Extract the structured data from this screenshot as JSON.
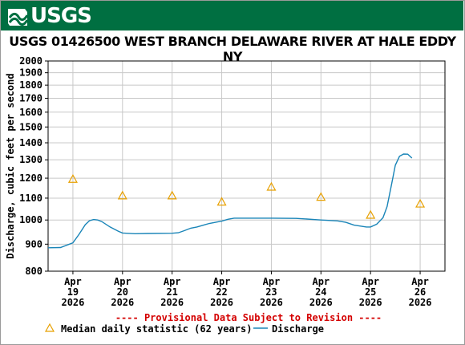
{
  "banner": {
    "logo_text": "USGS",
    "color": "#006f41"
  },
  "chart_data": {
    "type": "line",
    "title": "USGS 01426500 WEST BRANCH DELAWARE RIVER AT HALE EDDY NY",
    "ylabel": "Discharge, cubic feet per second",
    "xlabel": "",
    "ylim": [
      800,
      2000
    ],
    "y_scale": "log",
    "y_ticks": [
      800,
      900,
      1000,
      1100,
      1200,
      1300,
      1400,
      1500,
      1600,
      1700,
      1800,
      1900,
      2000
    ],
    "x_ticks": [
      {
        "date": "2026-04-19",
        "month": "Apr",
        "day": "19",
        "year": "2026"
      },
      {
        "date": "2026-04-20",
        "month": "Apr",
        "day": "20",
        "year": "2026"
      },
      {
        "date": "2026-04-21",
        "month": "Apr",
        "day": "21",
        "year": "2026"
      },
      {
        "date": "2026-04-22",
        "month": "Apr",
        "day": "22",
        "year": "2026"
      },
      {
        "date": "2026-04-23",
        "month": "Apr",
        "day": "23",
        "year": "2026"
      },
      {
        "date": "2026-04-24",
        "month": "Apr",
        "day": "24",
        "year": "2026"
      },
      {
        "date": "2026-04-25",
        "month": "Apr",
        "day": "25",
        "year": "2026"
      },
      {
        "date": "2026-04-26",
        "month": "Apr",
        "day": "26",
        "year": "2026"
      }
    ],
    "xlim": [
      "2026-04-18 12:00",
      "2026-04-26 12:00"
    ],
    "grid": true,
    "provisional_note": "---- Provisional Data Subject to Revision ----",
    "series": [
      {
        "name": "Discharge",
        "color": "#1a85b8",
        "points": [
          [
            "2026-04-18 12:00",
            886
          ],
          [
            "2026-04-18 18:00",
            887
          ],
          [
            "2026-04-19 00:00",
            905
          ],
          [
            "2026-04-19 03:00",
            940
          ],
          [
            "2026-04-19 06:00",
            980
          ],
          [
            "2026-04-19 08:00",
            997
          ],
          [
            "2026-04-19 10:00",
            1002
          ],
          [
            "2026-04-19 12:00",
            1000
          ],
          [
            "2026-04-19 14:00",
            993
          ],
          [
            "2026-04-19 18:00",
            970
          ],
          [
            "2026-04-19 22:00",
            952
          ],
          [
            "2026-04-20 00:00",
            945
          ],
          [
            "2026-04-20 06:00",
            942
          ],
          [
            "2026-04-20 12:00",
            943
          ],
          [
            "2026-04-21 00:00",
            944
          ],
          [
            "2026-04-21 03:00",
            946
          ],
          [
            "2026-04-21 06:00",
            955
          ],
          [
            "2026-04-21 09:00",
            965
          ],
          [
            "2026-04-21 12:00",
            970
          ],
          [
            "2026-04-21 18:00",
            985
          ],
          [
            "2026-04-22 00:00",
            995
          ],
          [
            "2026-04-22 03:00",
            1003
          ],
          [
            "2026-04-22 06:00",
            1008
          ],
          [
            "2026-04-22 12:00",
            1008
          ],
          [
            "2026-04-23 00:00",
            1008
          ],
          [
            "2026-04-23 12:00",
            1007
          ],
          [
            "2026-04-23 16:00",
            1005
          ],
          [
            "2026-04-24 00:00",
            1000
          ],
          [
            "2026-04-24 08:00",
            996
          ],
          [
            "2026-04-24 12:00",
            990
          ],
          [
            "2026-04-24 16:00",
            978
          ],
          [
            "2026-04-24 22:00",
            970
          ],
          [
            "2026-04-25 00:00",
            970
          ],
          [
            "2026-04-25 03:00",
            982
          ],
          [
            "2026-04-25 06:00",
            1010
          ],
          [
            "2026-04-25 08:00",
            1060
          ],
          [
            "2026-04-25 10:00",
            1160
          ],
          [
            "2026-04-25 12:00",
            1270
          ],
          [
            "2026-04-25 14:00",
            1320
          ],
          [
            "2026-04-25 16:00",
            1333
          ],
          [
            "2026-04-25 18:00",
            1332
          ],
          [
            "2026-04-25 20:00",
            1310
          ]
        ]
      },
      {
        "name": "Median daily statistic (62 years)",
        "color": "#e8a000",
        "marker": "triangle",
        "points": [
          [
            "2026-04-19 00:00",
            1195
          ],
          [
            "2026-04-20 00:00",
            1112
          ],
          [
            "2026-04-21 00:00",
            1112
          ],
          [
            "2026-04-22 00:00",
            1082
          ],
          [
            "2026-04-23 00:00",
            1155
          ],
          [
            "2026-04-24 00:00",
            1105
          ],
          [
            "2026-04-25 00:00",
            1022
          ],
          [
            "2026-04-26 00:00",
            1073
          ]
        ]
      }
    ],
    "legend": {
      "placement": "bottom",
      "items": [
        {
          "label": "Median daily statistic (62 years)",
          "symbol": "triangle",
          "color": "#e8a000"
        },
        {
          "label": "Discharge",
          "symbol": "line",
          "color": "#1a85b8"
        }
      ]
    }
  }
}
